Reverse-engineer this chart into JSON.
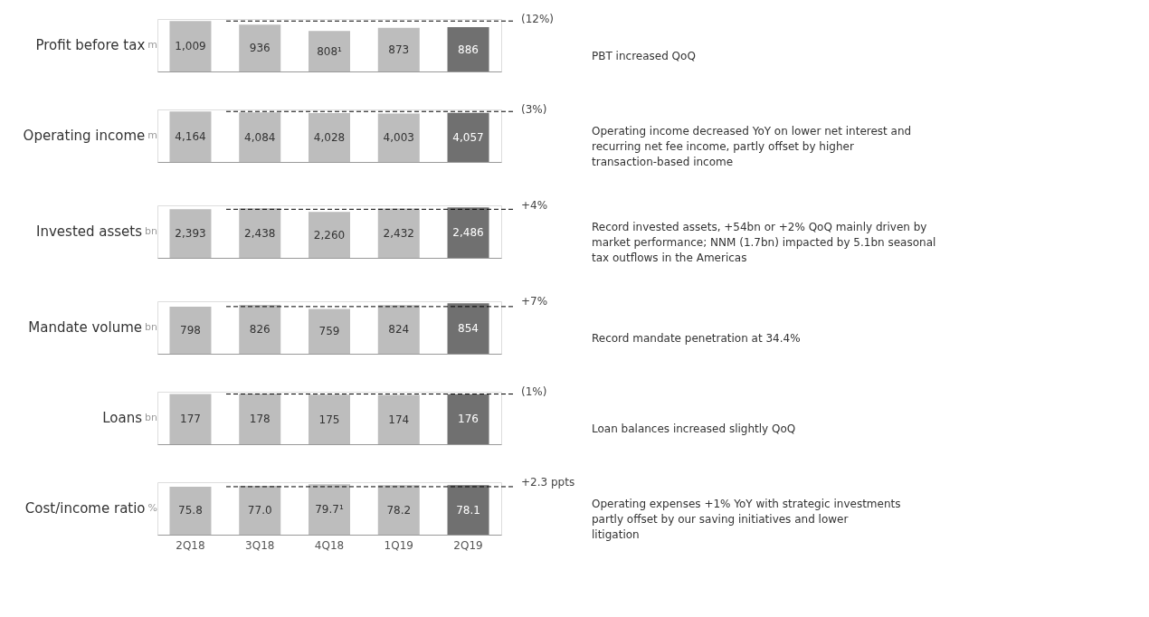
{
  "chart_data": [
    {
      "type": "bar",
      "title": "Profit before tax",
      "subtitle": "m",
      "categories": [
        null,
        null,
        null,
        null,
        null
      ],
      "values": [
        1009,
        936,
        808,
        873,
        886
      ],
      "value_labels": [
        "1,009",
        "936",
        "808¹",
        "873",
        "886"
      ],
      "colors": [
        "#bdbdbd",
        "#bdbdbd",
        "#bdbdbd",
        "#bdbdbd",
        "#707070"
      ],
      "ref_lines": [
        {
          "axis": "y",
          "value": 1009,
          "color": "#000000",
          "line_style": "dashed"
        }
      ],
      "annotations": [
        "(12%)",
        "PBT increased QoQ"
      ]
    },
    {
      "type": "bar",
      "title": "Operating income",
      "subtitle": "m",
      "categories": [
        null,
        null,
        null,
        null,
        null
      ],
      "values": [
        4164,
        4084,
        4028,
        4003,
        4057
      ],
      "value_labels": [
        "4,164",
        "4,084",
        "4,028",
        "4,003",
        "4,057"
      ],
      "colors": [
        "#bdbdbd",
        "#bdbdbd",
        "#bdbdbd",
        "#bdbdbd",
        "#707070"
      ],
      "ref_lines": [
        {
          "axis": "y",
          "value": 4164,
          "color": "#000000",
          "line_style": "dashed"
        }
      ],
      "annotations": [
        "(3%)",
        "Operating income decreased YoY on lower net interest and recurring net fee income, partly offset by higher transaction-based income"
      ]
    },
    {
      "type": "bar",
      "title": "Invested assets",
      "subtitle": "bn",
      "categories": [
        null,
        null,
        null,
        null,
        null
      ],
      "values": [
        2393,
        2438,
        2260,
        2432,
        2486
      ],
      "value_labels": [
        "2,393",
        "2,438",
        "2,260",
        "2,432",
        "2,486"
      ],
      "colors": [
        "#bdbdbd",
        "#bdbdbd",
        "#bdbdbd",
        "#bdbdbd",
        "#707070"
      ],
      "ref_lines": [
        {
          "axis": "y",
          "value": 2393,
          "color": "#000000",
          "line_style": "dashed"
        }
      ],
      "annotations": [
        "+4%",
        "Record invested assets, +54bn or +2% QoQ mainly driven by market performance; NNM (1.7bn) impacted by 5.1bn seasonal tax outflows in the Americas"
      ]
    },
    {
      "type": "bar",
      "title": "Mandate volume",
      "subtitle": "bn",
      "categories": [
        null,
        null,
        null,
        null,
        null
      ],
      "values": [
        798,
        826,
        759,
        824,
        854
      ],
      "value_labels": [
        "798",
        "826",
        "759",
        "824",
        "854"
      ],
      "colors": [
        "#bdbdbd",
        "#bdbdbd",
        "#bdbdbd",
        "#bdbdbd",
        "#707070"
      ],
      "ref_lines": [
        {
          "axis": "y",
          "value": 798,
          "color": "#000000",
          "line_style": "dashed"
        }
      ],
      "annotations": [
        "+7%",
        "Record mandate penetration at 34.4%"
      ]
    },
    {
      "type": "bar",
      "title": "Loans",
      "subtitle": "bn",
      "categories": [
        null,
        null,
        null,
        null,
        null
      ],
      "values": [
        177,
        178,
        175,
        174,
        176
      ],
      "value_labels": [
        "177",
        "178",
        "175",
        "174",
        "176"
      ],
      "colors": [
        "#bdbdbd",
        "#bdbdbd",
        "#bdbdbd",
        "#bdbdbd",
        "#707070"
      ],
      "ref_lines": [
        {
          "axis": "y",
          "value": 177,
          "color": "#000000",
          "line_style": "dashed"
        }
      ],
      "annotations": [
        "(1%)",
        "Loan balances increased slightly QoQ"
      ]
    },
    {
      "type": "bar",
      "title": "Cost/income ratio",
      "subtitle": "%",
      "categories": [
        "2Q18",
        "3Q18",
        "4Q18",
        "1Q19",
        "2Q19"
      ],
      "values": [
        75.8,
        77.0,
        79.7,
        78.2,
        78.1
      ],
      "value_labels": [
        "75.8",
        "77.0",
        "79.7¹",
        "78.2",
        "78.1"
      ],
      "colors": [
        "#bdbdbd",
        "#bdbdbd",
        "#bdbdbd",
        "#bdbdbd",
        "#707070"
      ],
      "ref_lines": [
        {
          "axis": "y",
          "value": 75.8,
          "color": "#000000",
          "line_style": "dashed"
        }
      ],
      "annotations": [
        "+2.3 ppts",
        "Operating expenses +1% YoY with strategic investments partly offset by our saving initiatives and lower litigation"
      ],
      "tick_labels": "x"
    }
  ]
}
